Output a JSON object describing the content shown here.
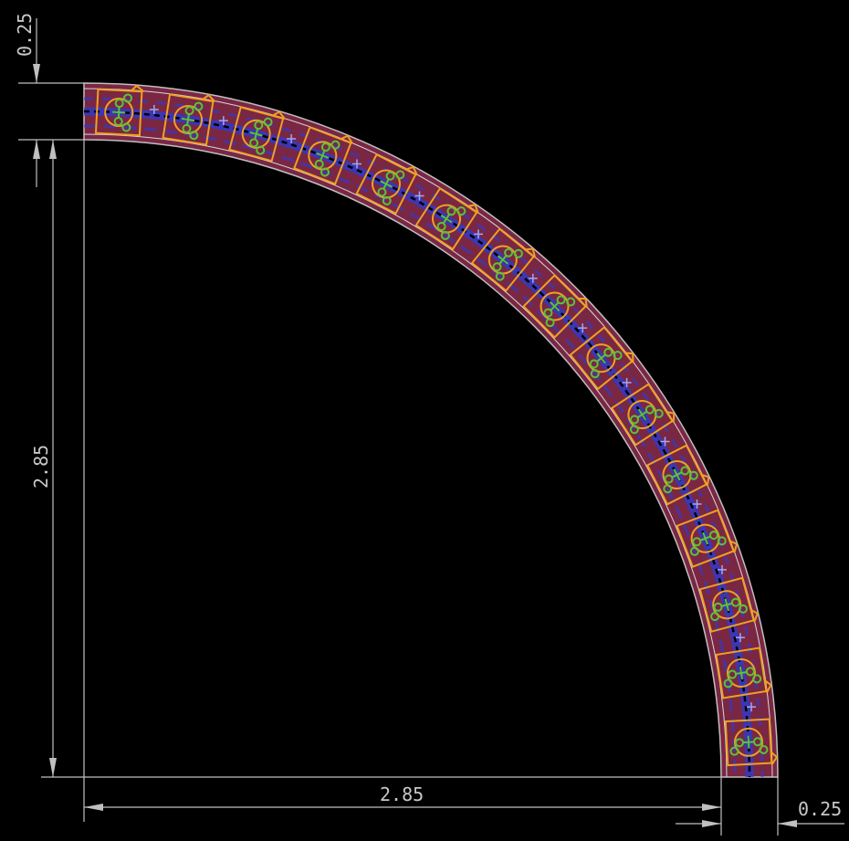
{
  "dimensions": {
    "top_thickness": "0.25",
    "left_height": "2.85",
    "bottom_width": "2.85",
    "right_thickness": "0.25"
  },
  "board": {
    "component_count": 15,
    "colors": {
      "background": "#000000",
      "board_fill": "#7a2744",
      "board_outline": "#bfbfbf",
      "dimension_line": "#c0c0c0",
      "footprint": "#f0a020",
      "pad": "#5cc23a",
      "trace": "#2a3cd8",
      "via_cross": "#9aa8ff"
    }
  }
}
